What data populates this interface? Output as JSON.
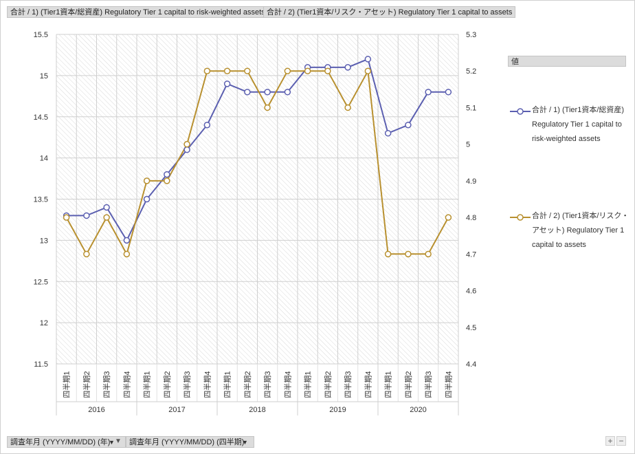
{
  "value_fields": {
    "field1": "合計 / 1) (Tier1資本/総資産) Regulatory Tier 1 capital to risk-weighted assets",
    "field2": "合計 / 2) (Tier1資本/リスク・アセット) Regulatory Tier 1 capital to assets"
  },
  "axis_fields": {
    "field1": "調査年月 (YYYY/MM/DD) (年)",
    "field2": "調査年月 (YYYY/MM/DD) (四半期)"
  },
  "legend": {
    "header": "値",
    "item1": "合計 / 1) (Tier1資本/総資産) Regulatory Tier 1 capital to risk-weighted assets",
    "item2": "合計 / 2) (Tier1資本/リスク・アセット) Regulatory Tier 1 capital to assets"
  },
  "controls": {
    "dropdown": "▼",
    "filter": "▼",
    "zoom_in": "+",
    "zoom_out": "−"
  },
  "chart_data": {
    "type": "line",
    "quarters": [
      "四半期1",
      "四半期2",
      "四半期3",
      "四半期4"
    ],
    "years": [
      "2016",
      "2017",
      "2018",
      "2019",
      "2020"
    ],
    "y_left": {
      "min": 11.5,
      "max": 15.5,
      "step": 0.5,
      "ticks": [
        "11.5",
        "12",
        "12.5",
        "13",
        "13.5",
        "14",
        "14.5",
        "15",
        "15.5"
      ]
    },
    "y_right": {
      "min": 4.4,
      "max": 5.3,
      "step": 0.1,
      "ticks": [
        "4.4",
        "4.5",
        "4.6",
        "4.7",
        "4.8",
        "4.9",
        "5",
        "5.1",
        "5.2",
        "5.3"
      ]
    },
    "series": [
      {
        "name": "合計 / 1) (Tier1資本/総資産) Regulatory Tier 1 capital to risk-weighted assets",
        "axis": "left",
        "color": "#5b5fb0",
        "values": [
          13.3,
          13.3,
          13.4,
          13.0,
          13.5,
          13.8,
          14.1,
          14.4,
          14.9,
          14.8,
          14.8,
          14.8,
          15.1,
          15.1,
          15.1,
          15.2,
          14.3,
          14.4,
          14.8,
          14.8
        ]
      },
      {
        "name": "合計 / 2) (Tier1資本/リスク・アセット) Regulatory Tier 1 capital to assets",
        "axis": "right",
        "color": "#b8902f",
        "values": [
          4.8,
          4.7,
          4.8,
          4.7,
          4.9,
          4.9,
          5.0,
          5.2,
          5.2,
          5.2,
          5.1,
          5.2,
          5.2,
          5.2,
          5.1,
          5.2,
          4.7,
          4.7,
          4.7,
          4.8
        ]
      }
    ]
  }
}
